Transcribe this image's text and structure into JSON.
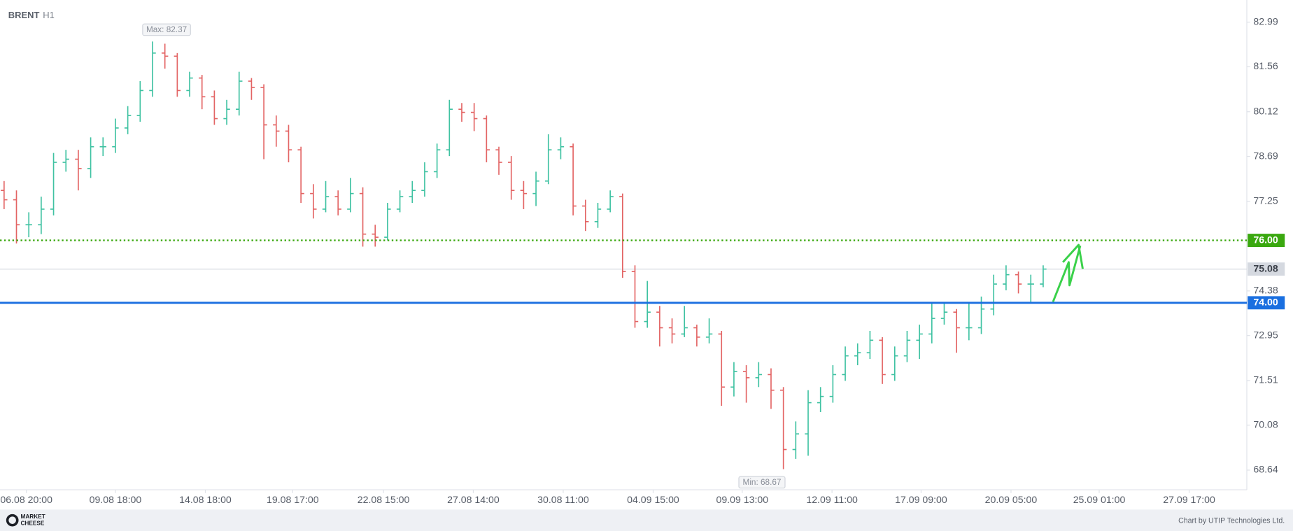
{
  "chart_data": {
    "type": "ohlc",
    "symbol": "BRENT",
    "timeframe": "H1",
    "open": [
      77.6,
      77.3,
      76.5,
      76.5,
      77.0,
      78.5,
      78.6,
      78.3,
      79.0,
      79.0,
      79.6,
      80.0,
      80.8,
      82.0,
      81.9,
      80.8,
      81.2,
      80.6,
      79.9,
      80.2,
      81.1,
      80.9,
      79.7,
      79.5,
      78.9,
      77.5,
      77.0,
      77.4,
      77.0,
      77.5,
      76.2,
      76.1,
      77.0,
      77.4,
      77.6,
      78.2,
      78.9,
      80.2,
      80.1,
      79.9,
      78.9,
      78.5,
      77.6,
      77.5,
      77.9,
      78.9,
      79.0,
      77.1,
      76.6,
      77.0,
      77.4,
      75.0,
      73.4,
      73.7,
      73.2,
      73.0,
      73.2,
      72.9,
      73.0,
      71.3,
      71.8,
      71.6,
      71.7,
      71.2,
      69.3,
      69.8,
      70.8,
      71.0,
      71.7,
      72.3,
      72.4,
      72.8,
      71.7,
      72.3,
      72.8,
      73.0,
      73.5,
      73.7,
      73.2,
      73.2,
      73.8,
      74.6,
      74.9,
      74.6,
      74.6
    ],
    "high": [
      77.9,
      77.6,
      76.9,
      77.4,
      78.8,
      78.9,
      78.9,
      79.3,
      79.3,
      79.9,
      80.3,
      81.1,
      82.37,
      82.3,
      82.0,
      81.4,
      81.3,
      80.8,
      80.5,
      81.4,
      81.2,
      81.0,
      80.0,
      79.7,
      79.0,
      77.8,
      77.9,
      77.6,
      78.0,
      77.7,
      76.5,
      77.2,
      77.6,
      77.9,
      78.5,
      79.1,
      80.5,
      80.4,
      80.4,
      80.0,
      79.0,
      78.7,
      77.9,
      78.2,
      79.4,
      79.3,
      79.1,
      77.3,
      77.2,
      77.6,
      77.5,
      75.2,
      74.7,
      73.9,
      73.5,
      73.9,
      73.3,
      73.5,
      73.1,
      72.1,
      72.0,
      72.1,
      71.9,
      71.3,
      70.2,
      71.2,
      71.3,
      72.0,
      72.6,
      72.7,
      73.1,
      72.9,
      72.6,
      73.1,
      73.3,
      74.0,
      74.0,
      73.8,
      74.0,
      74.2,
      74.9,
      75.2,
      75.0,
      74.9,
      75.2
    ],
    "low": [
      77.0,
      75.9,
      76.1,
      76.2,
      76.8,
      78.2,
      77.6,
      78.0,
      78.7,
      78.8,
      79.4,
      79.8,
      80.6,
      81.5,
      80.6,
      80.6,
      80.2,
      79.7,
      79.7,
      80.0,
      80.5,
      78.6,
      79.0,
      78.5,
      77.2,
      76.7,
      76.9,
      76.8,
      76.9,
      75.8,
      75.8,
      76.0,
      76.9,
      77.2,
      77.4,
      78.0,
      78.7,
      79.8,
      79.5,
      78.5,
      78.1,
      77.3,
      77.0,
      77.1,
      77.8,
      78.6,
      76.8,
      76.3,
      76.4,
      76.9,
      74.8,
      73.2,
      73.2,
      72.6,
      72.7,
      72.9,
      72.6,
      72.7,
      70.7,
      71.0,
      70.8,
      71.3,
      70.6,
      68.67,
      69.0,
      69.1,
      70.5,
      70.8,
      71.5,
      72.0,
      72.2,
      71.4,
      71.5,
      72.1,
      72.2,
      72.7,
      73.3,
      72.4,
      72.8,
      73.0,
      73.6,
      74.4,
      74.3,
      74.0,
      74.5
    ],
    "close": [
      77.3,
      76.5,
      76.5,
      77.0,
      78.5,
      78.6,
      78.3,
      79.0,
      79.0,
      79.6,
      80.0,
      80.8,
      82.0,
      81.9,
      80.8,
      81.2,
      80.6,
      79.9,
      80.2,
      81.1,
      80.9,
      79.7,
      79.5,
      78.9,
      77.5,
      77.0,
      77.4,
      77.0,
      77.5,
      76.2,
      76.1,
      77.0,
      77.4,
      77.6,
      78.2,
      78.9,
      80.2,
      80.1,
      79.9,
      78.9,
      78.5,
      77.6,
      77.5,
      77.9,
      78.9,
      79.0,
      77.1,
      76.6,
      77.0,
      77.4,
      75.0,
      73.4,
      73.7,
      73.2,
      73.0,
      73.2,
      72.9,
      73.0,
      71.3,
      71.8,
      71.6,
      71.7,
      71.2,
      69.3,
      69.8,
      70.8,
      71.0,
      71.7,
      72.3,
      72.4,
      72.8,
      71.7,
      72.3,
      72.8,
      73.0,
      73.5,
      73.7,
      73.2,
      73.2,
      73.8,
      74.6,
      74.9,
      74.6,
      74.6,
      75.08
    ],
    "up_color": "#3fc2a2",
    "down_color": "#e36464",
    "xlim": [
      -0.33,
      100.33
    ],
    "xticks": [
      {
        "value": 1.8,
        "label": "06.08 20:00"
      },
      {
        "value": 9,
        "label": "09.08 18:00"
      },
      {
        "value": 16.27,
        "label": "14.08 18:00"
      },
      {
        "value": 23.33,
        "label": "19.08 17:00"
      },
      {
        "value": 30.67,
        "label": "22.08 15:00"
      },
      {
        "value": 37.93,
        "label": "27.08 14:00"
      },
      {
        "value": 45.2,
        "label": "30.08 11:00"
      },
      {
        "value": 52.47,
        "label": "04.09 15:00"
      },
      {
        "value": 59.67,
        "label": "09.09 13:00"
      },
      {
        "value": 66.93,
        "label": "12.09 11:00"
      },
      {
        "value": 74.13,
        "label": "17.09 09:00"
      },
      {
        "value": 81.4,
        "label": "20.09 05:00"
      },
      {
        "value": 88.53,
        "label": "25.09 01:00"
      },
      {
        "value": 95.8,
        "label": "27.09 17:00"
      }
    ],
    "ylim": [
      68.01,
      83.7
    ],
    "yticks": [
      82.99,
      81.56,
      80.12,
      78.69,
      77.25,
      74.38,
      72.95,
      71.51,
      70.08,
      68.64
    ],
    "levels": [
      {
        "value": 76,
        "label": "76.00",
        "color": "#3aa80f",
        "style": "dotted"
      },
      {
        "value": 74,
        "label": "74.00",
        "color": "#1a6fe0",
        "style": "solid"
      }
    ],
    "last_price": {
      "value": 75.08,
      "label": "75.08",
      "color": "#d5d9e0"
    },
    "annotations": {
      "max": "Max: 82.37",
      "min": "Min: 68.67"
    },
    "footer": "Chart by UTIP Technologies Ltd.",
    "logo": [
      "MARKET",
      "CHEESE"
    ]
  }
}
